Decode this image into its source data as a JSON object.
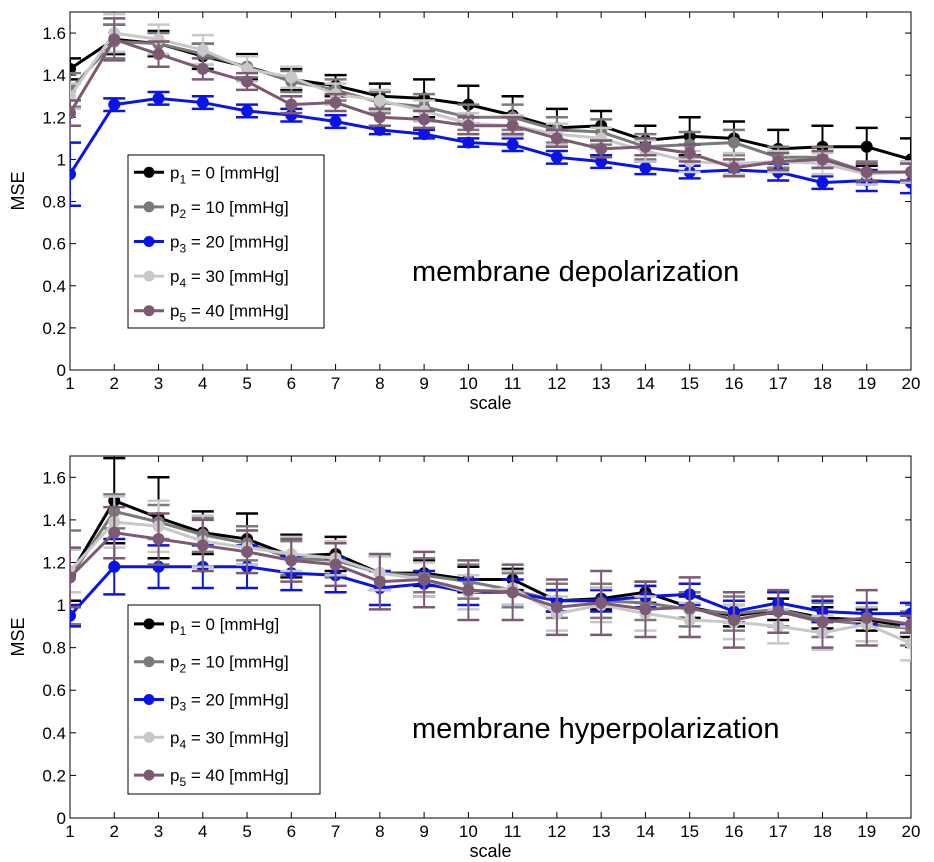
{
  "chart_data": [
    {
      "type": "line",
      "annotation": "membrane depolarization",
      "xlabel": "scale",
      "ylabel": "MSE",
      "xlim": [
        1,
        20
      ],
      "ylim": [
        0,
        1.7
      ],
      "xticks": [
        1,
        2,
        3,
        4,
        5,
        6,
        7,
        8,
        9,
        10,
        11,
        12,
        13,
        14,
        15,
        16,
        17,
        18,
        19,
        20
      ],
      "yticks": [
        0,
        0.2,
        0.4,
        0.6,
        0.8,
        1,
        1.2,
        1.4,
        1.6
      ],
      "ytick_labels": [
        "0",
        "0.2",
        "0.4",
        "0.6",
        "0.8",
        "1",
        "1.2",
        "1.4",
        "1.6"
      ],
      "legend_position": "middle-left",
      "x": [
        1,
        2,
        3,
        4,
        5,
        6,
        7,
        8,
        9,
        10,
        11,
        12,
        13,
        14,
        15,
        16,
        17,
        18,
        19,
        20
      ],
      "series": [
        {
          "name": "p1 = 0 [mmHg]",
          "label_base": "p",
          "label_sub": "1",
          "label_rest": " = 0 [mmHg]",
          "color": "#000000",
          "values": [
            1.43,
            1.57,
            1.55,
            1.49,
            1.44,
            1.38,
            1.35,
            1.3,
            1.29,
            1.26,
            1.21,
            1.15,
            1.16,
            1.09,
            1.11,
            1.1,
            1.05,
            1.06,
            1.06,
            1.0
          ],
          "errors": [
            0.05,
            0.07,
            0.06,
            0.06,
            0.06,
            0.05,
            0.05,
            0.06,
            0.09,
            0.09,
            0.09,
            0.09,
            0.07,
            0.07,
            0.09,
            0.08,
            0.09,
            0.1,
            0.09,
            0.1
          ]
        },
        {
          "name": "p2 = 10 [mmHg]",
          "label_base": "p",
          "label_sub": "2",
          "label_rest": " = 10 [mmHg]",
          "color": "#7a7a7a",
          "values": [
            1.33,
            1.56,
            1.55,
            1.5,
            1.44,
            1.37,
            1.33,
            1.27,
            1.25,
            1.2,
            1.2,
            1.14,
            1.13,
            1.06,
            1.07,
            1.08,
            1.01,
            1.01,
            0.94,
            0.94
          ],
          "errors": [
            0.08,
            0.08,
            0.05,
            0.05,
            0.05,
            0.05,
            0.05,
            0.05,
            0.06,
            0.06,
            0.06,
            0.06,
            0.06,
            0.06,
            0.06,
            0.06,
            0.05,
            0.05,
            0.05,
            0.05
          ]
        },
        {
          "name": "p3 = 20 [mmHg]",
          "label_base": "p",
          "label_sub": "3",
          "label_rest": " = 20 [mmHg]",
          "color": "#0a14e6",
          "values": [
            0.93,
            1.26,
            1.29,
            1.27,
            1.23,
            1.21,
            1.18,
            1.14,
            1.12,
            1.08,
            1.07,
            1.01,
            0.99,
            0.96,
            0.94,
            0.95,
            0.94,
            0.89,
            0.9,
            0.89
          ],
          "errors": [
            0.15,
            0.03,
            0.03,
            0.03,
            0.03,
            0.03,
            0.03,
            0.02,
            0.02,
            0.02,
            0.03,
            0.03,
            0.03,
            0.03,
            0.03,
            0.03,
            0.04,
            0.03,
            0.05,
            0.05
          ]
        },
        {
          "name": "p4 = 30 [mmHg]",
          "label_base": "p",
          "label_sub": "4",
          "label_rest": " = 30 [mmHg]",
          "color": "#c8c8c8",
          "values": [
            1.3,
            1.6,
            1.57,
            1.52,
            1.43,
            1.39,
            1.31,
            1.28,
            1.23,
            1.17,
            1.16,
            1.12,
            1.1,
            1.04,
            0.99,
            0.98,
            0.99,
            0.98,
            0.93,
            0.94
          ],
          "errors": [
            0.06,
            0.09,
            0.07,
            0.07,
            0.06,
            0.05,
            0.05,
            0.05,
            0.05,
            0.05,
            0.05,
            0.05,
            0.05,
            0.05,
            0.05,
            0.05,
            0.05,
            0.05,
            0.05,
            0.05
          ]
        },
        {
          "name": "p5 = 40 [mmHg]",
          "label_base": "p",
          "label_sub": "5",
          "label_rest": " = 40 [mmHg]",
          "color": "#7d5a73",
          "values": [
            1.22,
            1.57,
            1.5,
            1.43,
            1.37,
            1.26,
            1.27,
            1.2,
            1.19,
            1.16,
            1.16,
            1.1,
            1.05,
            1.06,
            1.03,
            0.96,
            0.99,
            1.0,
            0.94,
            0.94
          ],
          "errors": [
            0.06,
            0.1,
            0.06,
            0.05,
            0.04,
            0.04,
            0.04,
            0.04,
            0.04,
            0.04,
            0.04,
            0.04,
            0.04,
            0.04,
            0.04,
            0.04,
            0.04,
            0.04,
            0.04,
            0.04
          ]
        }
      ]
    },
    {
      "type": "line",
      "annotation": "membrane hyperpolarization",
      "xlabel": "scale",
      "ylabel": "MSE",
      "xlim": [
        1,
        20
      ],
      "ylim": [
        0,
        1.7
      ],
      "xticks": [
        1,
        2,
        3,
        4,
        5,
        6,
        7,
        8,
        9,
        10,
        11,
        12,
        13,
        14,
        15,
        16,
        17,
        18,
        19,
        20
      ],
      "yticks": [
        0,
        0.2,
        0.4,
        0.6,
        0.8,
        1,
        1.2,
        1.4,
        1.6
      ],
      "ytick_labels": [
        "0",
        "0.2",
        "0.4",
        "0.6",
        "0.8",
        "1",
        "1.2",
        "1.4",
        "1.6"
      ],
      "legend_position": "bottom-left",
      "x": [
        1,
        2,
        3,
        4,
        5,
        6,
        7,
        8,
        9,
        10,
        11,
        12,
        13,
        14,
        15,
        16,
        17,
        18,
        19,
        20
      ],
      "series": [
        {
          "name": "p1 = 0 [mmHg]",
          "label_base": "p",
          "label_sub": "1",
          "label_rest": " = 0 [mmHg]",
          "color": "#000000",
          "values": [
            1.14,
            1.49,
            1.41,
            1.34,
            1.31,
            1.23,
            1.24,
            1.15,
            1.15,
            1.12,
            1.12,
            1.02,
            1.03,
            1.06,
            0.99,
            0.95,
            0.98,
            0.94,
            0.93,
            0.9
          ],
          "errors": [
            0.12,
            0.2,
            0.19,
            0.1,
            0.12,
            0.1,
            0.08,
            0.08,
            0.06,
            0.06,
            0.05,
            0.05,
            0.05,
            0.05,
            0.05,
            0.05,
            0.05,
            0.05,
            0.05,
            0.05
          ]
        },
        {
          "name": "p2 = 10 [mmHg]",
          "label_base": "p",
          "label_sub": "2",
          "label_rest": " = 10 [mmHg]",
          "color": "#7a7a7a",
          "values": [
            1.13,
            1.44,
            1.39,
            1.33,
            1.29,
            1.22,
            1.21,
            1.15,
            1.14,
            1.11,
            1.07,
            1.02,
            1.02,
            1.01,
            0.98,
            0.96,
            0.98,
            0.93,
            0.91,
            0.89
          ],
          "errors": [
            0.22,
            0.08,
            0.08,
            0.08,
            0.08,
            0.08,
            0.08,
            0.08,
            0.08,
            0.08,
            0.08,
            0.08,
            0.08,
            0.08,
            0.08,
            0.08,
            0.08,
            0.08,
            0.08,
            0.08
          ]
        },
        {
          "name": "p3 = 20 [mmHg]",
          "label_base": "p",
          "label_sub": "3",
          "label_rest": " = 20 [mmHg]",
          "color": "#0a14e6",
          "values": [
            0.95,
            1.18,
            1.18,
            1.18,
            1.18,
            1.15,
            1.14,
            1.08,
            1.1,
            1.06,
            1.06,
            1.02,
            1.02,
            1.04,
            1.05,
            0.97,
            1.01,
            0.97,
            0.96,
            0.96
          ],
          "errors": [
            0.05,
            0.13,
            0.1,
            0.1,
            0.1,
            0.08,
            0.08,
            0.08,
            0.06,
            0.06,
            0.06,
            0.05,
            0.05,
            0.05,
            0.05,
            0.05,
            0.05,
            0.05,
            0.05,
            0.05
          ]
        },
        {
          "name": "p4 = 30 [mmHg]",
          "label_base": "p",
          "label_sub": "4",
          "label_rest": " = 30 [mmHg]",
          "color": "#c8c8c8",
          "values": [
            1.16,
            1.39,
            1.37,
            1.3,
            1.27,
            1.24,
            1.22,
            1.15,
            1.12,
            1.06,
            1.08,
            0.96,
            1.0,
            0.96,
            0.93,
            0.92,
            0.9,
            0.87,
            0.91,
            0.82
          ],
          "errors": [
            0.1,
            0.12,
            0.12,
            0.12,
            0.08,
            0.08,
            0.08,
            0.08,
            0.08,
            0.08,
            0.08,
            0.08,
            0.08,
            0.08,
            0.08,
            0.08,
            0.08,
            0.08,
            0.08,
            0.08
          ]
        },
        {
          "name": "p5 = 40 [mmHg]",
          "label_base": "p",
          "label_sub": "5",
          "label_rest": " = 40 [mmHg]",
          "color": "#7d5a73",
          "values": [
            1.13,
            1.34,
            1.31,
            1.28,
            1.25,
            1.21,
            1.19,
            1.11,
            1.12,
            1.07,
            1.06,
            0.99,
            1.01,
            0.98,
            0.99,
            0.93,
            0.97,
            0.92,
            0.94,
            0.91
          ],
          "errors": [
            0.14,
            0.12,
            0.12,
            0.12,
            0.1,
            0.1,
            0.1,
            0.13,
            0.13,
            0.14,
            0.13,
            0.13,
            0.15,
            0.13,
            0.14,
            0.13,
            0.1,
            0.12,
            0.13,
            0.04
          ]
        }
      ]
    }
  ]
}
